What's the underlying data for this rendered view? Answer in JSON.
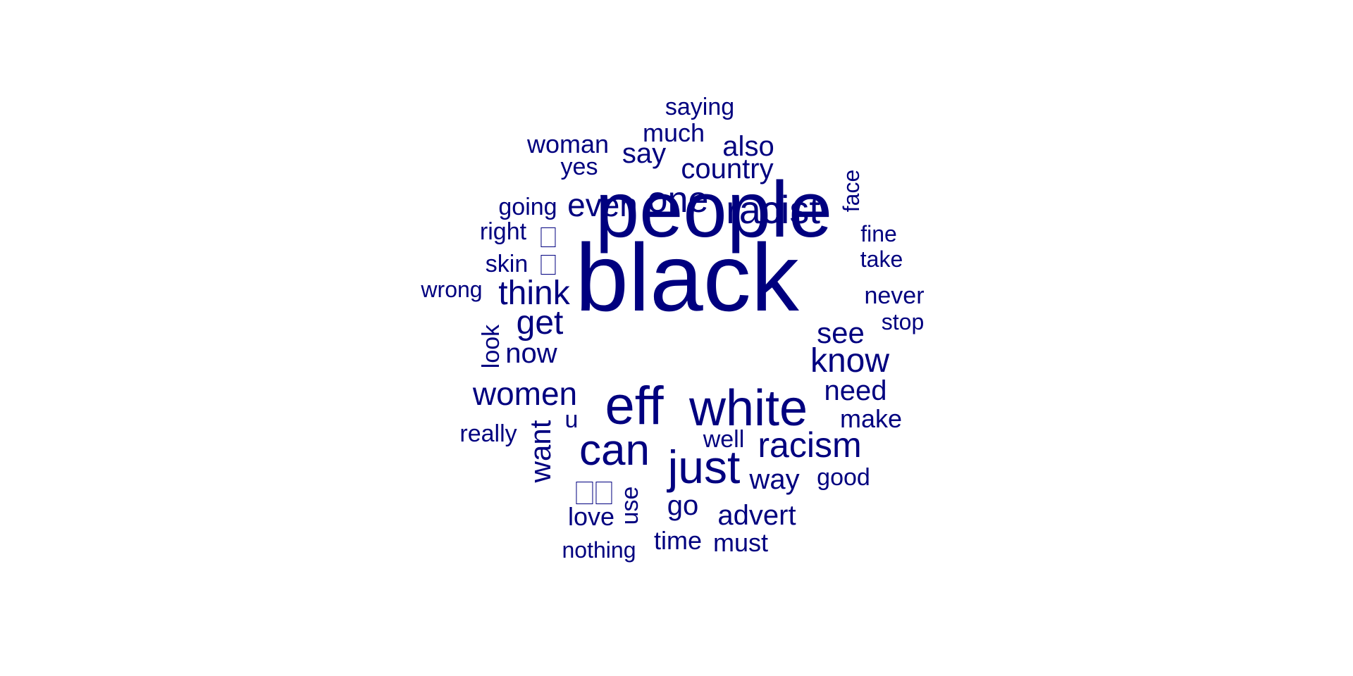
{
  "color": "#00007f",
  "words": {
    "people": "people",
    "black": "black",
    "eff": "eff",
    "white": "white",
    "can": "can",
    "just": "just",
    "racist": "racist",
    "racism": "racism",
    "women": "women",
    "think": "think",
    "one": "one",
    "even": "even",
    "know": "know",
    "get": "get",
    "see": "see",
    "now": "now",
    "country": "country",
    "want": "want",
    "need": "need",
    "way": "way",
    "advert": "advert",
    "say": "say",
    "also": "also",
    "much": "much",
    "go": "go",
    "make": "make",
    "woman": "woman",
    "saying": "saying",
    "yes": "yes",
    "going": "going",
    "right": "right",
    "skin": "skin",
    "wrong": "wrong",
    "look": "look",
    "really": "really",
    "u": "u",
    "well": "well",
    "good": "good",
    "love": "love",
    "use": "use",
    "time": "time",
    "must": "must",
    "nothing": "nothing",
    "face": "face",
    "fine": "fine",
    "take": "take",
    "never": "never",
    "stop": "stop"
  },
  "glyphs": {
    "box_single_1": "missing-glyph",
    "box_single_2": "missing-glyph",
    "box_double": "missing-glyph-pair"
  }
}
